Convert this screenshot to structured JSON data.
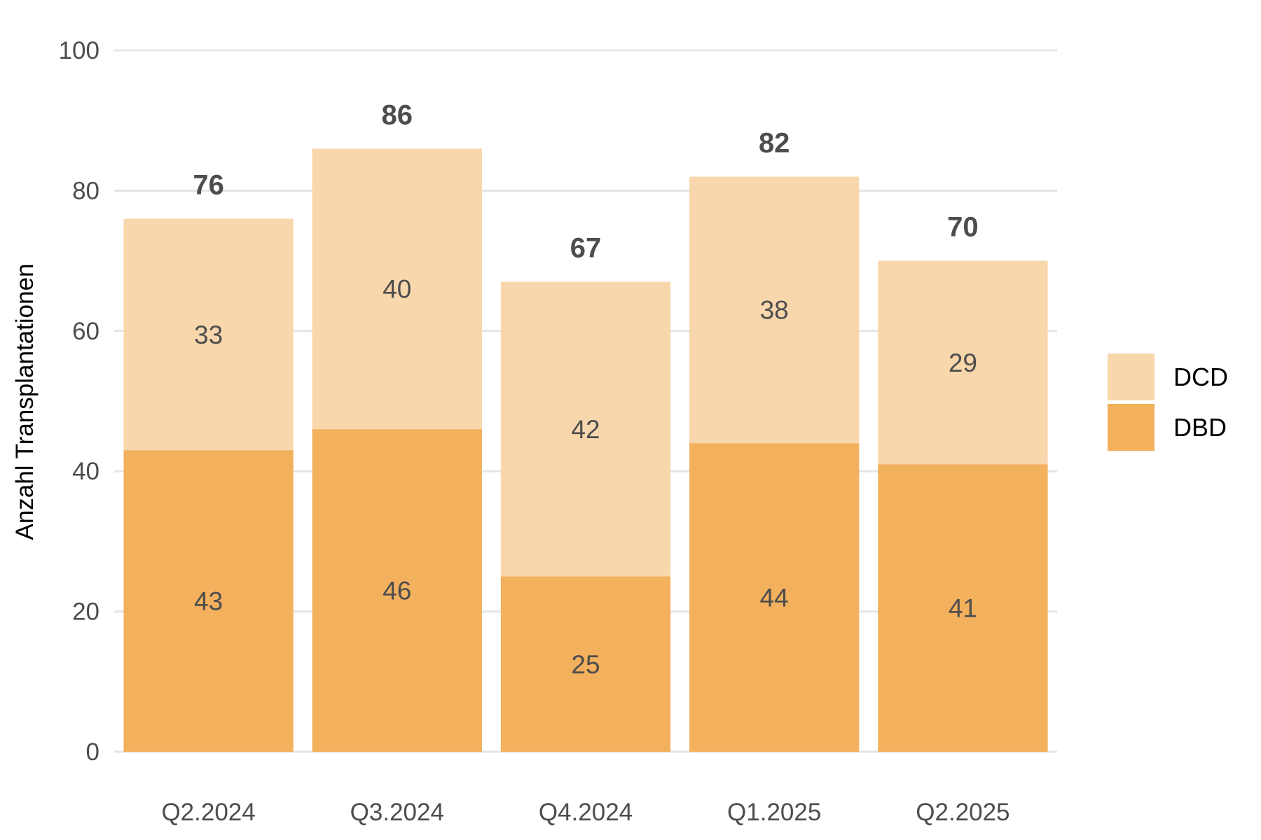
{
  "chart_data": {
    "type": "bar",
    "stacked": true,
    "categories": [
      "Q2.2024",
      "Q3.2024",
      "Q4.2024",
      "Q1.2025",
      "Q2.2025"
    ],
    "series": [
      {
        "name": "DBD",
        "values": [
          43,
          46,
          25,
          44,
          41
        ],
        "color": "#f3b05d"
      },
      {
        "name": "DCD",
        "values": [
          33,
          40,
          42,
          38,
          29
        ],
        "color": "#f8d7ac"
      }
    ],
    "totals": [
      76,
      86,
      67,
      82,
      70
    ],
    "ylabel": "Anzahl Transplantationen",
    "ylim": [
      0,
      100
    ],
    "yticks": [
      0,
      20,
      40,
      60,
      80,
      100
    ],
    "grid": true,
    "legend": {
      "placement": "right",
      "order": [
        "DCD",
        "DBD"
      ]
    }
  }
}
